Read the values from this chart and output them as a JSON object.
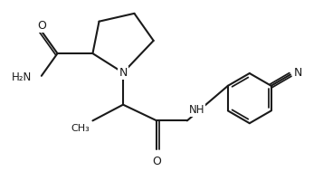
{
  "bg_color": "#ffffff",
  "line_color": "#1a1a1a",
  "line_width": 1.5,
  "font_size": 8.5,
  "figsize": [
    3.57,
    1.89
  ],
  "dpi": 100,
  "xlim": [
    0,
    10
  ],
  "ylim": [
    0,
    5.3
  ]
}
